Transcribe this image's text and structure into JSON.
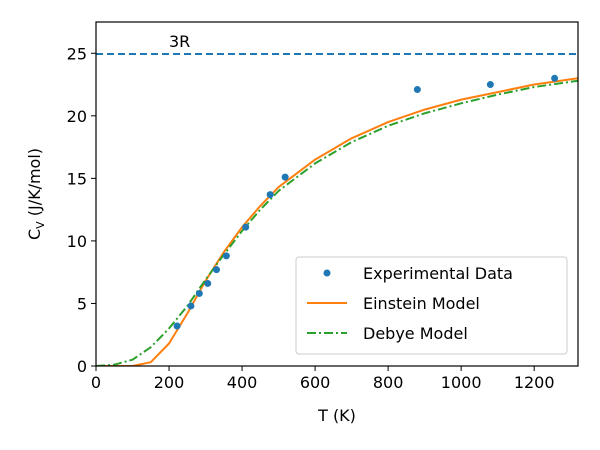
{
  "chart_data": {
    "type": "line",
    "xlabel": "T (K)",
    "ylabel": {
      "main": "C",
      "sub": "V",
      "rest": " (J/K/mol)"
    },
    "xlim": [
      0,
      1320
    ],
    "ylim": [
      0,
      27.5
    ],
    "xticks": [
      0,
      200,
      400,
      600,
      800,
      1000,
      1200
    ],
    "yticks": [
      0,
      5,
      10,
      15,
      20,
      25
    ],
    "grid": false,
    "legend_position": "lower-right",
    "reference_line": {
      "label": "3R",
      "y": 24.94,
      "color": "#1f77b4",
      "style": "dashed"
    },
    "experimental": {
      "name": "Experimental Data",
      "color": "#1f77b4",
      "x": [
        222,
        260,
        283,
        306,
        330,
        357,
        410,
        477,
        518,
        880,
        1080,
        1256
      ],
      "y": [
        3.2,
        4.8,
        5.8,
        6.6,
        7.7,
        8.8,
        11.1,
        13.7,
        15.1,
        22.1,
        22.5,
        23.0
      ]
    },
    "series": [
      {
        "name": "Einstein Model",
        "color": "#ff7f0e",
        "style": "solid",
        "x": [
          0,
          100,
          150,
          200,
          250,
          300,
          350,
          400,
          450,
          500,
          600,
          700,
          800,
          900,
          1000,
          1100,
          1200,
          1320
        ],
        "y": [
          0.0,
          0.0,
          0.3,
          1.8,
          4.2,
          6.8,
          9.1,
          11.1,
          12.8,
          14.3,
          16.5,
          18.2,
          19.5,
          20.5,
          21.3,
          21.9,
          22.5,
          23.0
        ]
      },
      {
        "name": "Debye Model",
        "color": "#2ca02c",
        "style": "dashdot",
        "x": [
          0,
          50,
          100,
          150,
          200,
          250,
          300,
          350,
          400,
          450,
          500,
          600,
          700,
          800,
          900,
          1000,
          1100,
          1200,
          1320
        ],
        "y": [
          0.0,
          0.1,
          0.5,
          1.5,
          3.0,
          4.8,
          6.9,
          8.9,
          10.8,
          12.5,
          14.0,
          16.2,
          17.9,
          19.2,
          20.2,
          21.0,
          21.7,
          22.3,
          22.8
        ]
      }
    ]
  }
}
